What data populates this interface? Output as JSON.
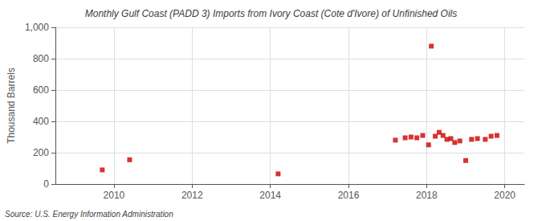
{
  "chart_data": {
    "type": "scatter",
    "title": "Monthly Gulf Coast (PADD 3) Imports from Ivory Coast (Cote d'Ivore) of Unfinished Oils",
    "ylabel": "Thousand Barrels",
    "annotations": [
      "Source: U.S. Energy Information Administration"
    ],
    "color": "#cc0000",
    "marker": "square",
    "grid": true,
    "xlim": [
      2008.5,
      2020.5
    ],
    "xticks": [
      2010,
      2012,
      2014,
      2016,
      2018,
      2020
    ],
    "ylim": [
      0,
      1000
    ],
    "yticks": [
      0,
      200,
      400,
      600,
      800,
      {
        "value": 1000,
        "label": "1,000"
      }
    ],
    "x": [
      2009.7,
      2010.4,
      2014.2,
      2017.2,
      2017.45,
      2017.6,
      2017.75,
      2017.9,
      2018.05,
      2018.12,
      2018.22,
      2018.32,
      2018.42,
      2018.52,
      2018.62,
      2018.72,
      2018.85,
      2019.0,
      2019.15,
      2019.3,
      2019.5,
      2019.65,
      2019.8
    ],
    "values": [
      90,
      155,
      65,
      280,
      295,
      300,
      295,
      310,
      250,
      880,
      305,
      330,
      310,
      285,
      290,
      265,
      275,
      150,
      285,
      290,
      285,
      305,
      310
    ]
  }
}
